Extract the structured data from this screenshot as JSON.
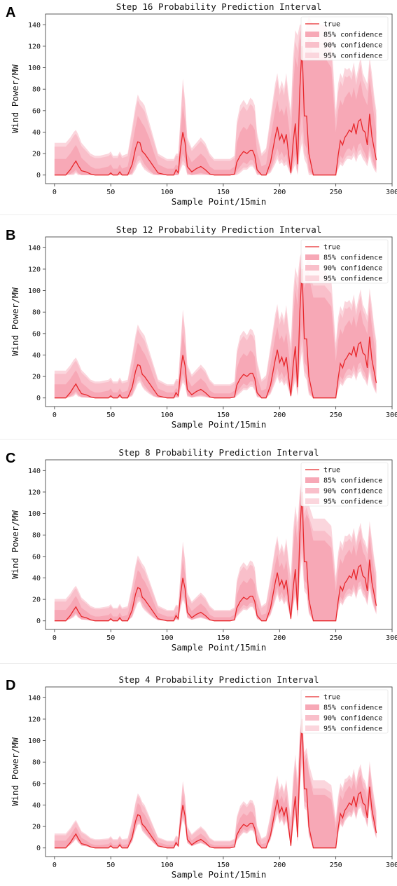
{
  "chart_data": [
    {
      "type": "line",
      "panel_label": "A",
      "title": "Step 16 Probability Prediction Interval",
      "xlabel": "Sample Point/15min",
      "ylabel": "Wind Power/MW",
      "xlim": [
        -8,
        300
      ],
      "ylim": [
        -8,
        150
      ],
      "xticks": [
        0,
        50,
        100,
        150,
        200,
        250,
        300
      ],
      "yticks": [
        0,
        20,
        40,
        60,
        80,
        100,
        120,
        140
      ],
      "legend": [
        "true",
        "85% confidence",
        "90% confidence",
        "95% confidence"
      ],
      "legend_position": "top-right",
      "band_scale": 1.0
    },
    {
      "type": "line",
      "panel_label": "B",
      "title": "Step 12 Probability Prediction Interval",
      "xlabel": "Sample Point/15min",
      "ylabel": "Wind Power/MW",
      "xlim": [
        -8,
        300
      ],
      "ylim": [
        -8,
        150
      ],
      "xticks": [
        0,
        50,
        100,
        150,
        200,
        250,
        300
      ],
      "yticks": [
        0,
        20,
        40,
        60,
        80,
        100,
        120,
        140
      ],
      "legend": [
        "true",
        "85% confidence",
        "90% confidence",
        "95% confidence"
      ],
      "legend_position": "top-right",
      "band_scale": 0.85
    },
    {
      "type": "line",
      "panel_label": "C",
      "title": "Step 8 Probability Prediction Interval",
      "xlabel": "Sample Point/15min",
      "ylabel": "Wind Power/MW",
      "xlim": [
        -8,
        300
      ],
      "ylim": [
        -8,
        150
      ],
      "xticks": [
        0,
        50,
        100,
        150,
        200,
        250,
        300
      ],
      "yticks": [
        0,
        20,
        40,
        60,
        80,
        100,
        120,
        140
      ],
      "legend": [
        "true",
        "85% confidence",
        "90% confidence",
        "95% confidence"
      ],
      "legend_position": "top-right",
      "band_scale": 0.68
    },
    {
      "type": "line",
      "panel_label": "D",
      "title": "Step 4 Probability Prediction Interval",
      "xlabel": "Sample Point/15min",
      "ylabel": "Wind Power/MW",
      "xlim": [
        -8,
        300
      ],
      "ylim": [
        -8,
        150
      ],
      "xticks": [
        0,
        50,
        100,
        150,
        200,
        250,
        300
      ],
      "yticks": [
        0,
        20,
        40,
        60,
        80,
        100,
        120,
        140
      ],
      "legend": [
        "true",
        "85% confidence",
        "90% confidence",
        "95% confidence"
      ],
      "legend_position": "top-right",
      "band_scale": 0.45
    }
  ],
  "true_series": {
    "x": [
      0,
      10,
      14,
      17,
      19,
      21,
      24,
      28,
      32,
      36,
      40,
      48,
      50,
      52,
      56,
      58,
      60,
      65,
      69,
      72,
      74,
      76,
      78,
      80,
      84,
      88,
      92,
      100,
      106,
      108,
      110,
      112,
      114,
      116,
      118,
      122,
      126,
      130,
      134,
      138,
      142,
      150,
      156,
      160,
      162,
      165,
      168,
      171,
      174,
      176,
      178,
      180,
      184,
      188,
      192,
      196,
      198,
      200,
      202,
      204,
      206,
      208,
      210,
      212,
      214,
      216,
      218,
      220,
      222,
      224,
      226,
      230,
      236,
      240,
      246,
      250,
      252,
      254,
      256,
      258,
      260,
      262,
      264,
      266,
      268,
      270,
      272,
      274,
      276,
      278,
      280,
      282,
      284,
      286
    ],
    "y": [
      0,
      0,
      5,
      10,
      13,
      9,
      4,
      3,
      1,
      0,
      0,
      0,
      2,
      0,
      0,
      3,
      0,
      0,
      10,
      25,
      31,
      30,
      22,
      20,
      14,
      8,
      2,
      0,
      0,
      5,
      2,
      25,
      40,
      30,
      8,
      3,
      6,
      8,
      5,
      1,
      0,
      0,
      0,
      1,
      12,
      18,
      22,
      20,
      23,
      23,
      18,
      5,
      0,
      0,
      12,
      35,
      45,
      33,
      38,
      30,
      38,
      20,
      2,
      30,
      48,
      10,
      80,
      120,
      55,
      55,
      20,
      0,
      0,
      0,
      0,
      0,
      18,
      32,
      28,
      35,
      38,
      42,
      40,
      48,
      38,
      50,
      52,
      42,
      40,
      28,
      57,
      36,
      25,
      14
    ]
  },
  "band_series": {
    "x": [
      0,
      10,
      14,
      17,
      19,
      21,
      24,
      28,
      32,
      36,
      40,
      48,
      50,
      52,
      56,
      58,
      60,
      65,
      69,
      72,
      74,
      76,
      78,
      80,
      84,
      88,
      92,
      100,
      106,
      108,
      110,
      112,
      114,
      116,
      118,
      122,
      126,
      130,
      134,
      138,
      142,
      150,
      156,
      160,
      162,
      165,
      168,
      171,
      174,
      176,
      178,
      180,
      184,
      188,
      192,
      196,
      198,
      200,
      202,
      204,
      206,
      208,
      210,
      212,
      214,
      216,
      218,
      220,
      222,
      224,
      226,
      230,
      236,
      240,
      246,
      250,
      252,
      254,
      256,
      258,
      260,
      262,
      264,
      266,
      268,
      270,
      272,
      274,
      276,
      278,
      280,
      282,
      284,
      286
    ],
    "upper95": [
      30,
      30,
      35,
      40,
      42,
      38,
      30,
      25,
      20,
      18,
      18,
      20,
      22,
      18,
      18,
      22,
      18,
      20,
      45,
      65,
      75,
      70,
      68,
      65,
      50,
      35,
      20,
      15,
      15,
      20,
      20,
      55,
      90,
      70,
      35,
      25,
      30,
      35,
      30,
      20,
      15,
      15,
      15,
      18,
      50,
      65,
      70,
      65,
      72,
      70,
      65,
      40,
      20,
      25,
      55,
      85,
      95,
      80,
      88,
      80,
      95,
      75,
      60,
      110,
      135,
      130,
      140,
      140,
      130,
      140,
      150,
      140,
      140,
      140,
      130,
      60,
      85,
      95,
      90,
      100,
      98,
      100,
      95,
      105,
      90,
      100,
      110,
      95,
      90,
      85,
      110,
      95,
      75,
      60
    ],
    "lower95": [
      0,
      0,
      0,
      0,
      2,
      0,
      0,
      0,
      0,
      0,
      0,
      0,
      0,
      0,
      0,
      0,
      0,
      0,
      0,
      5,
      10,
      12,
      8,
      5,
      2,
      0,
      0,
      0,
      0,
      0,
      0,
      5,
      10,
      8,
      0,
      0,
      0,
      0,
      0,
      0,
      0,
      0,
      0,
      0,
      0,
      2,
      5,
      5,
      8,
      8,
      5,
      0,
      0,
      0,
      2,
      10,
      15,
      10,
      12,
      8,
      10,
      5,
      0,
      5,
      10,
      0,
      20,
      30,
      15,
      10,
      0,
      0,
      0,
      0,
      0,
      0,
      5,
      10,
      8,
      12,
      15,
      15,
      14,
      18,
      12,
      18,
      20,
      15,
      12,
      8,
      18,
      10,
      5,
      2
    ],
    "upper85": [
      15,
      15,
      20,
      25,
      28,
      24,
      16,
      12,
      8,
      6,
      6,
      8,
      10,
      6,
      6,
      10,
      6,
      8,
      28,
      45,
      55,
      52,
      48,
      45,
      35,
      22,
      10,
      6,
      6,
      10,
      8,
      40,
      65,
      50,
      20,
      12,
      16,
      20,
      16,
      8,
      5,
      5,
      5,
      8,
      30,
      40,
      45,
      42,
      48,
      46,
      42,
      22,
      8,
      10,
      35,
      60,
      70,
      58,
      62,
      55,
      65,
      48,
      30,
      80,
      110,
      100,
      125,
      130,
      110,
      120,
      130,
      110,
      110,
      110,
      100,
      40,
      60,
      70,
      65,
      72,
      75,
      78,
      72,
      82,
      70,
      80,
      88,
      75,
      70,
      65,
      90,
      72,
      55,
      40
    ],
    "lower85": [
      0,
      0,
      1,
      3,
      5,
      2,
      0,
      0,
      0,
      0,
      0,
      0,
      0,
      0,
      0,
      0,
      0,
      0,
      2,
      12,
      18,
      18,
      14,
      10,
      5,
      1,
      0,
      0,
      0,
      0,
      0,
      10,
      20,
      15,
      2,
      0,
      1,
      2,
      1,
      0,
      0,
      0,
      0,
      0,
      4,
      8,
      12,
      10,
      14,
      14,
      10,
      2,
      0,
      0,
      5,
      18,
      25,
      18,
      22,
      16,
      20,
      10,
      0,
      12,
      20,
      2,
      40,
      60,
      30,
      25,
      5,
      0,
      0,
      0,
      0,
      0,
      10,
      18,
      15,
      20,
      24,
      25,
      22,
      28,
      20,
      28,
      30,
      24,
      20,
      14,
      28,
      18,
      10,
      5
    ]
  },
  "legend_colors": {
    "true": "#e8272b",
    "band85": "#f7a8b6",
    "band90": "#f9bfca",
    "band95": "#fbd6dd"
  }
}
